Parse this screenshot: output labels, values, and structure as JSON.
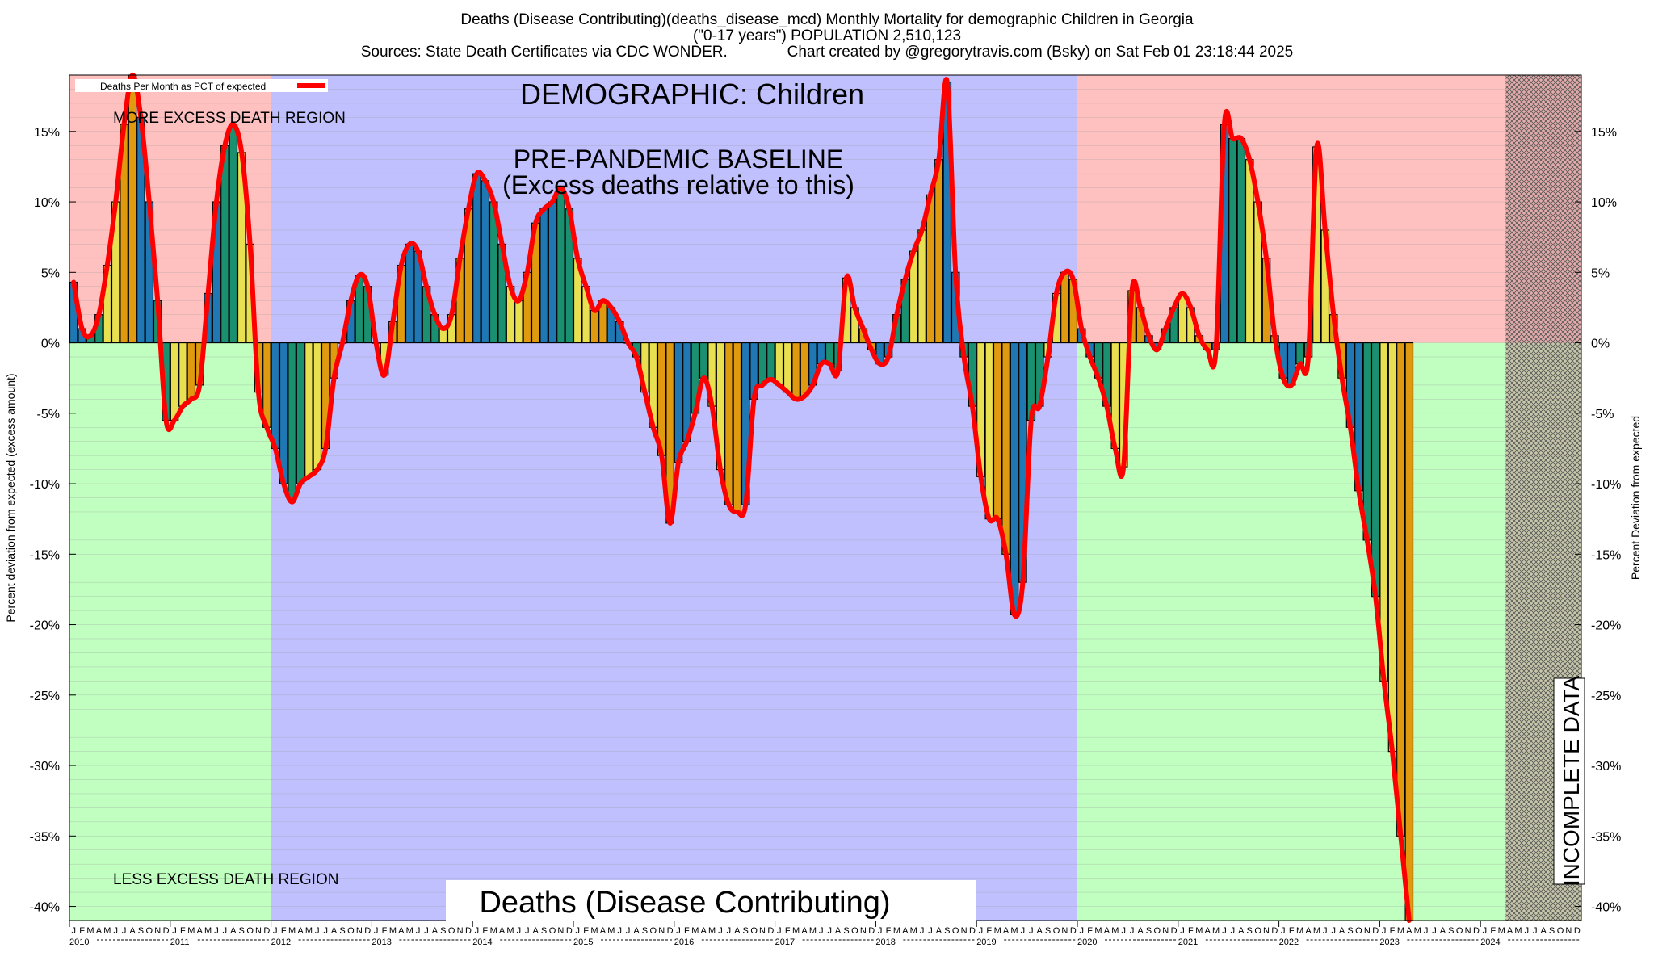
{
  "header": {
    "line1": "Deaths (Disease Contributing)(deaths_disease_mcd) Monthly Mortality for demographic Children in Georgia",
    "line2": "(\"0-17 years\") POPULATION 2,510,123",
    "line3": "Sources: State Death Certificates via CDC WONDER.              Chart created by @gregorytravis.com (Bsky) on Sat Feb 01 23:18:44 2025"
  },
  "colors": {
    "excess_region": "#ffc0c0",
    "less_region": "#c0ffc0",
    "baseline_region": "#c0c0ff",
    "line": "#ff0000",
    "bar_cycle": [
      "#1f78b4",
      "#1a9070",
      "#e8e050",
      "#e09a10"
    ],
    "hatch": "#cc9999"
  },
  "chart_data": {
    "type": "bar",
    "title": "DEMOGRAPHIC: Children",
    "series_title": "Deaths (Disease Contributing)",
    "legend": {
      "label": "Deaths Per Month as PCT of expected",
      "placement": "top-left"
    },
    "ylabel_left": "Percent deviation from expected (excess amount)",
    "ylabel_right": "Percent Deviation from expected",
    "ylim": [
      -41,
      19
    ],
    "y_ticks": [
      15,
      10,
      5,
      0,
      -5,
      -10,
      -15,
      -20,
      -25,
      -30,
      -35,
      -40
    ],
    "y_tick_labels": [
      "15%",
      "10%",
      "5%",
      "0%",
      "-5%",
      "-10%",
      "-15%",
      "-20%",
      "-25%",
      "-30%",
      "-35%",
      "-40%"
    ],
    "grid": "horizontal",
    "regions": {
      "more": "MORE EXCESS DEATH REGION",
      "less": "LESS EXCESS DEATH REGION",
      "baseline_title": "PRE-PANDEMIC BASELINE",
      "baseline_sub": "(Excess deaths relative to this)",
      "incomplete": "INCOMPLETE DATA"
    },
    "month_letters": [
      "J",
      "F",
      "M",
      "A",
      "M",
      "J",
      "J",
      "A",
      "S",
      "O",
      "N",
      "D"
    ],
    "years": [
      "2010",
      "2011",
      "2012",
      "2013",
      "2014",
      "2015",
      "2016",
      "2017",
      "2018",
      "2019",
      "2020",
      "2021",
      "2022",
      "2023",
      "2024"
    ],
    "baseline_years": [
      "2012",
      "2013",
      "2014",
      "2015",
      "2016",
      "2017",
      "2018",
      "2019"
    ],
    "incomplete_from": "2024-M4",
    "values": [
      4.3,
      1.0,
      0.5,
      2.0,
      5.5,
      10.0,
      15.5,
      19.0,
      16.0,
      10.0,
      3.0,
      -5.5,
      -5.5,
      -4.5,
      -4.0,
      -3.0,
      3.5,
      10.0,
      14.0,
      15.5,
      13.5,
      7.0,
      -3.5,
      -6.0,
      -7.5,
      -10.0,
      -11.3,
      -10.0,
      -9.5,
      -9.0,
      -7.5,
      -2.5,
      0.0,
      3.0,
      4.8,
      4.0,
      0.0,
      -2.3,
      1.5,
      5.5,
      7.0,
      6.5,
      4.0,
      2.0,
      1.0,
      2.0,
      6.0,
      9.5,
      12.0,
      11.5,
      10.0,
      7.0,
      4.0,
      3.0,
      5.0,
      8.5,
      9.5,
      10.0,
      11.0,
      9.5,
      6.0,
      4.0,
      2.3,
      3.0,
      2.5,
      1.5,
      0.0,
      -1.0,
      -3.5,
      -6.0,
      -8.0,
      -12.8,
      -8.5,
      -7.0,
      -5.0,
      -2.5,
      -4.5,
      -9.0,
      -11.5,
      -12.0,
      -11.5,
      -4.0,
      -3.0,
      -2.6,
      -3.0,
      -3.5,
      -4.0,
      -3.8,
      -3.0,
      -1.5,
      -1.5,
      -2.0,
      4.6,
      2.5,
      1.0,
      -0.5,
      -1.5,
      -1.0,
      2.0,
      4.5,
      6.5,
      8.0,
      10.5,
      13.0,
      18.5,
      5.0,
      -1.0,
      -4.5,
      -9.5,
      -12.5,
      -12.5,
      -15.0,
      -19.3,
      -17.0,
      -5.5,
      -4.5,
      -1.0,
      3.5,
      5.0,
      4.5,
      1.0,
      -1.0,
      -2.5,
      -4.5,
      -7.5,
      -8.8,
      3.7,
      2.5,
      0.5,
      -0.5,
      1.0,
      2.5,
      3.5,
      2.5,
      0.5,
      -0.5,
      -0.5,
      15.5,
      14.5,
      14.5,
      13.0,
      10.0,
      6.0,
      0.5,
      -2.5,
      -3.0,
      -1.5,
      -1.0,
      13.9,
      8.0,
      2.0,
      -2.5,
      -6.0,
      -10.5,
      -14.0,
      -18.0,
      -24.0,
      -29.0,
      -35.0,
      -41.0
    ]
  }
}
